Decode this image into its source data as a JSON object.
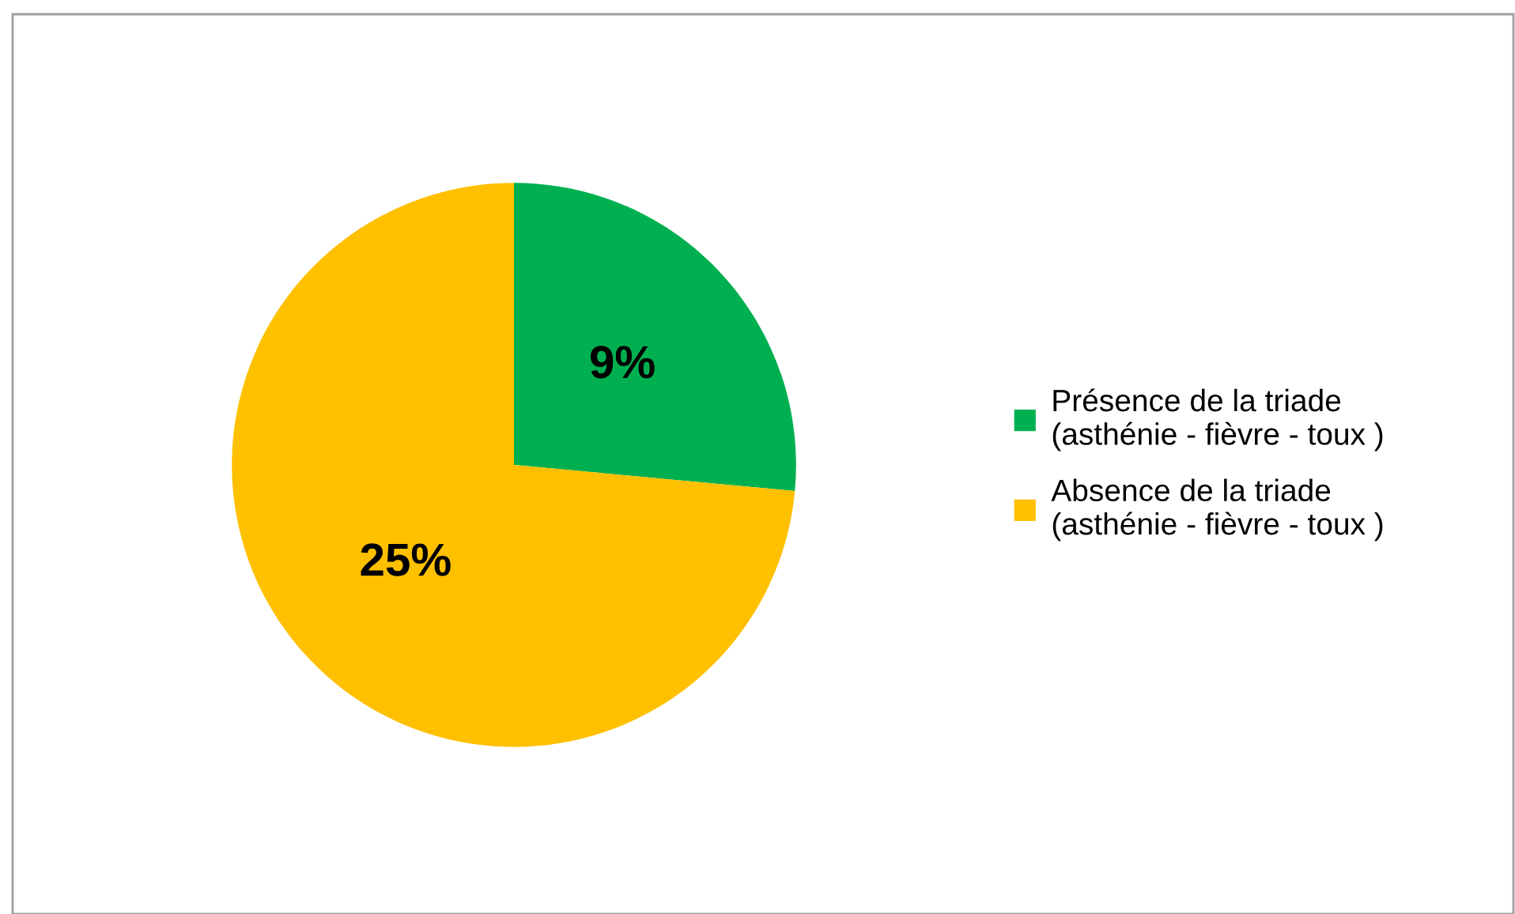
{
  "chart_data": {
    "type": "pie",
    "categories": [
      "Présence de la triade\n(asthénie - fièvre - toux )",
      "Absence de la triade\n(asthénie - fièvre - toux )"
    ],
    "values": [
      9,
      25
    ],
    "colors": [
      "#00b050",
      "#ffc000"
    ],
    "value_labels": [
      "9%",
      "25%"
    ],
    "legend": "right"
  }
}
